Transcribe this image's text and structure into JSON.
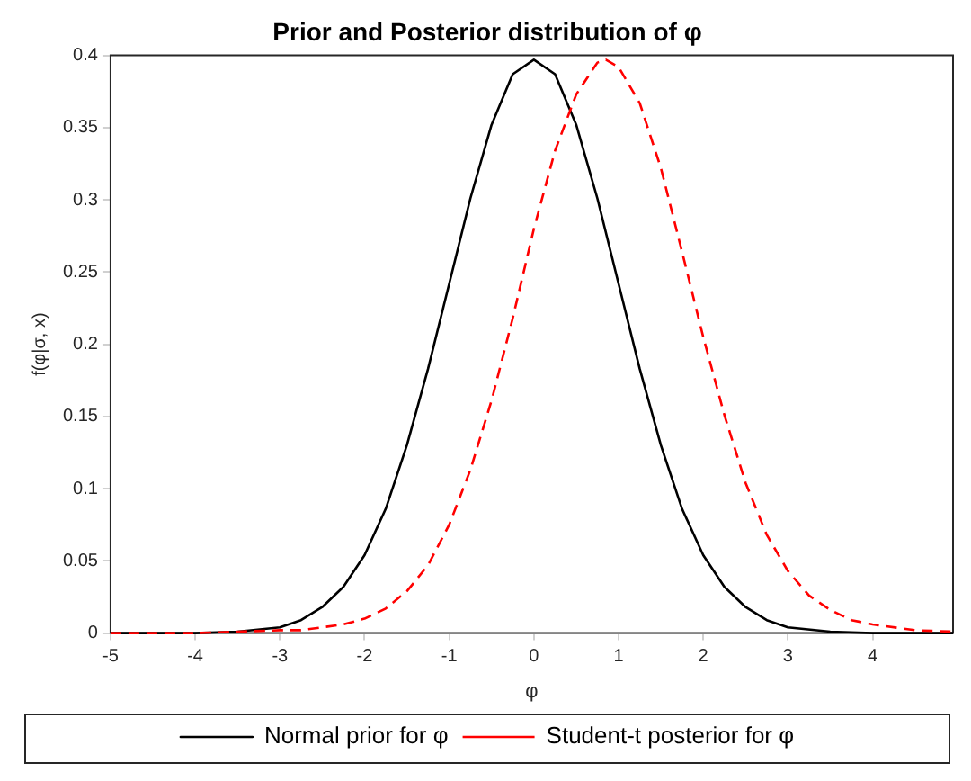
{
  "chart_data": {
    "type": "line",
    "title": "Prior and Posterior distribution of φ",
    "xlabel": "φ",
    "ylabel": "f(φ|σ, x)",
    "xlim": [
      -5,
      4.95
    ],
    "xticks": [
      -5,
      -4,
      -3,
      -2,
      -1,
      0,
      1,
      2,
      3,
      4
    ],
    "ylim": [
      0,
      0.4
    ],
    "yticks": [
      0,
      0.05,
      0.1,
      0.15,
      0.2,
      0.25,
      0.3,
      0.35,
      0.4
    ],
    "grid": false,
    "legend": "bottom",
    "marker": "none",
    "series": [
      {
        "name": "Normal prior for φ",
        "color": "#000000",
        "line_style": "solid",
        "x": [
          -5,
          -4.5,
          -4,
          -3.5,
          -3,
          -2.75,
          -2.5,
          -2.25,
          -2,
          -1.75,
          -1.5,
          -1.25,
          -1,
          -0.75,
          -0.5,
          -0.25,
          0,
          0.25,
          0.5,
          0.75,
          1,
          1.25,
          1.5,
          1.75,
          2,
          2.25,
          2.5,
          2.75,
          3,
          3.5,
          4,
          4.5,
          4.95
        ],
        "values": [
          0,
          0,
          0,
          0.001,
          0.004,
          0.009,
          0.018,
          0.032,
          0.054,
          0.086,
          0.13,
          0.183,
          0.242,
          0.301,
          0.352,
          0.387,
          0.397,
          0.387,
          0.352,
          0.301,
          0.242,
          0.183,
          0.13,
          0.086,
          0.054,
          0.032,
          0.018,
          0.009,
          0.004,
          0.001,
          0,
          0,
          0
        ]
      },
      {
        "name": "Student-t posterior for φ",
        "color": "#ff0000",
        "line_style": "dashed",
        "x": [
          -5,
          -4.5,
          -4,
          -3.5,
          -3,
          -2.75,
          -2.5,
          -2.25,
          -2,
          -1.75,
          -1.5,
          -1.25,
          -1,
          -0.75,
          -0.5,
          -0.25,
          0,
          0.25,
          0.5,
          0.75,
          0.85,
          1,
          1.25,
          1.5,
          1.75,
          2,
          2.25,
          2.5,
          2.75,
          3,
          3.25,
          3.5,
          3.75,
          4,
          4.5,
          4.95
        ],
        "values": [
          0,
          0,
          0,
          0.001,
          0.002,
          0.002,
          0.004,
          0.006,
          0.01,
          0.017,
          0.029,
          0.047,
          0.075,
          0.113,
          0.161,
          0.218,
          0.28,
          0.334,
          0.373,
          0.395,
          0.397,
          0.392,
          0.367,
          0.322,
          0.264,
          0.205,
          0.151,
          0.104,
          0.068,
          0.043,
          0.026,
          0.016,
          0.009,
          0.006,
          0.002,
          0.001
        ]
      }
    ]
  }
}
